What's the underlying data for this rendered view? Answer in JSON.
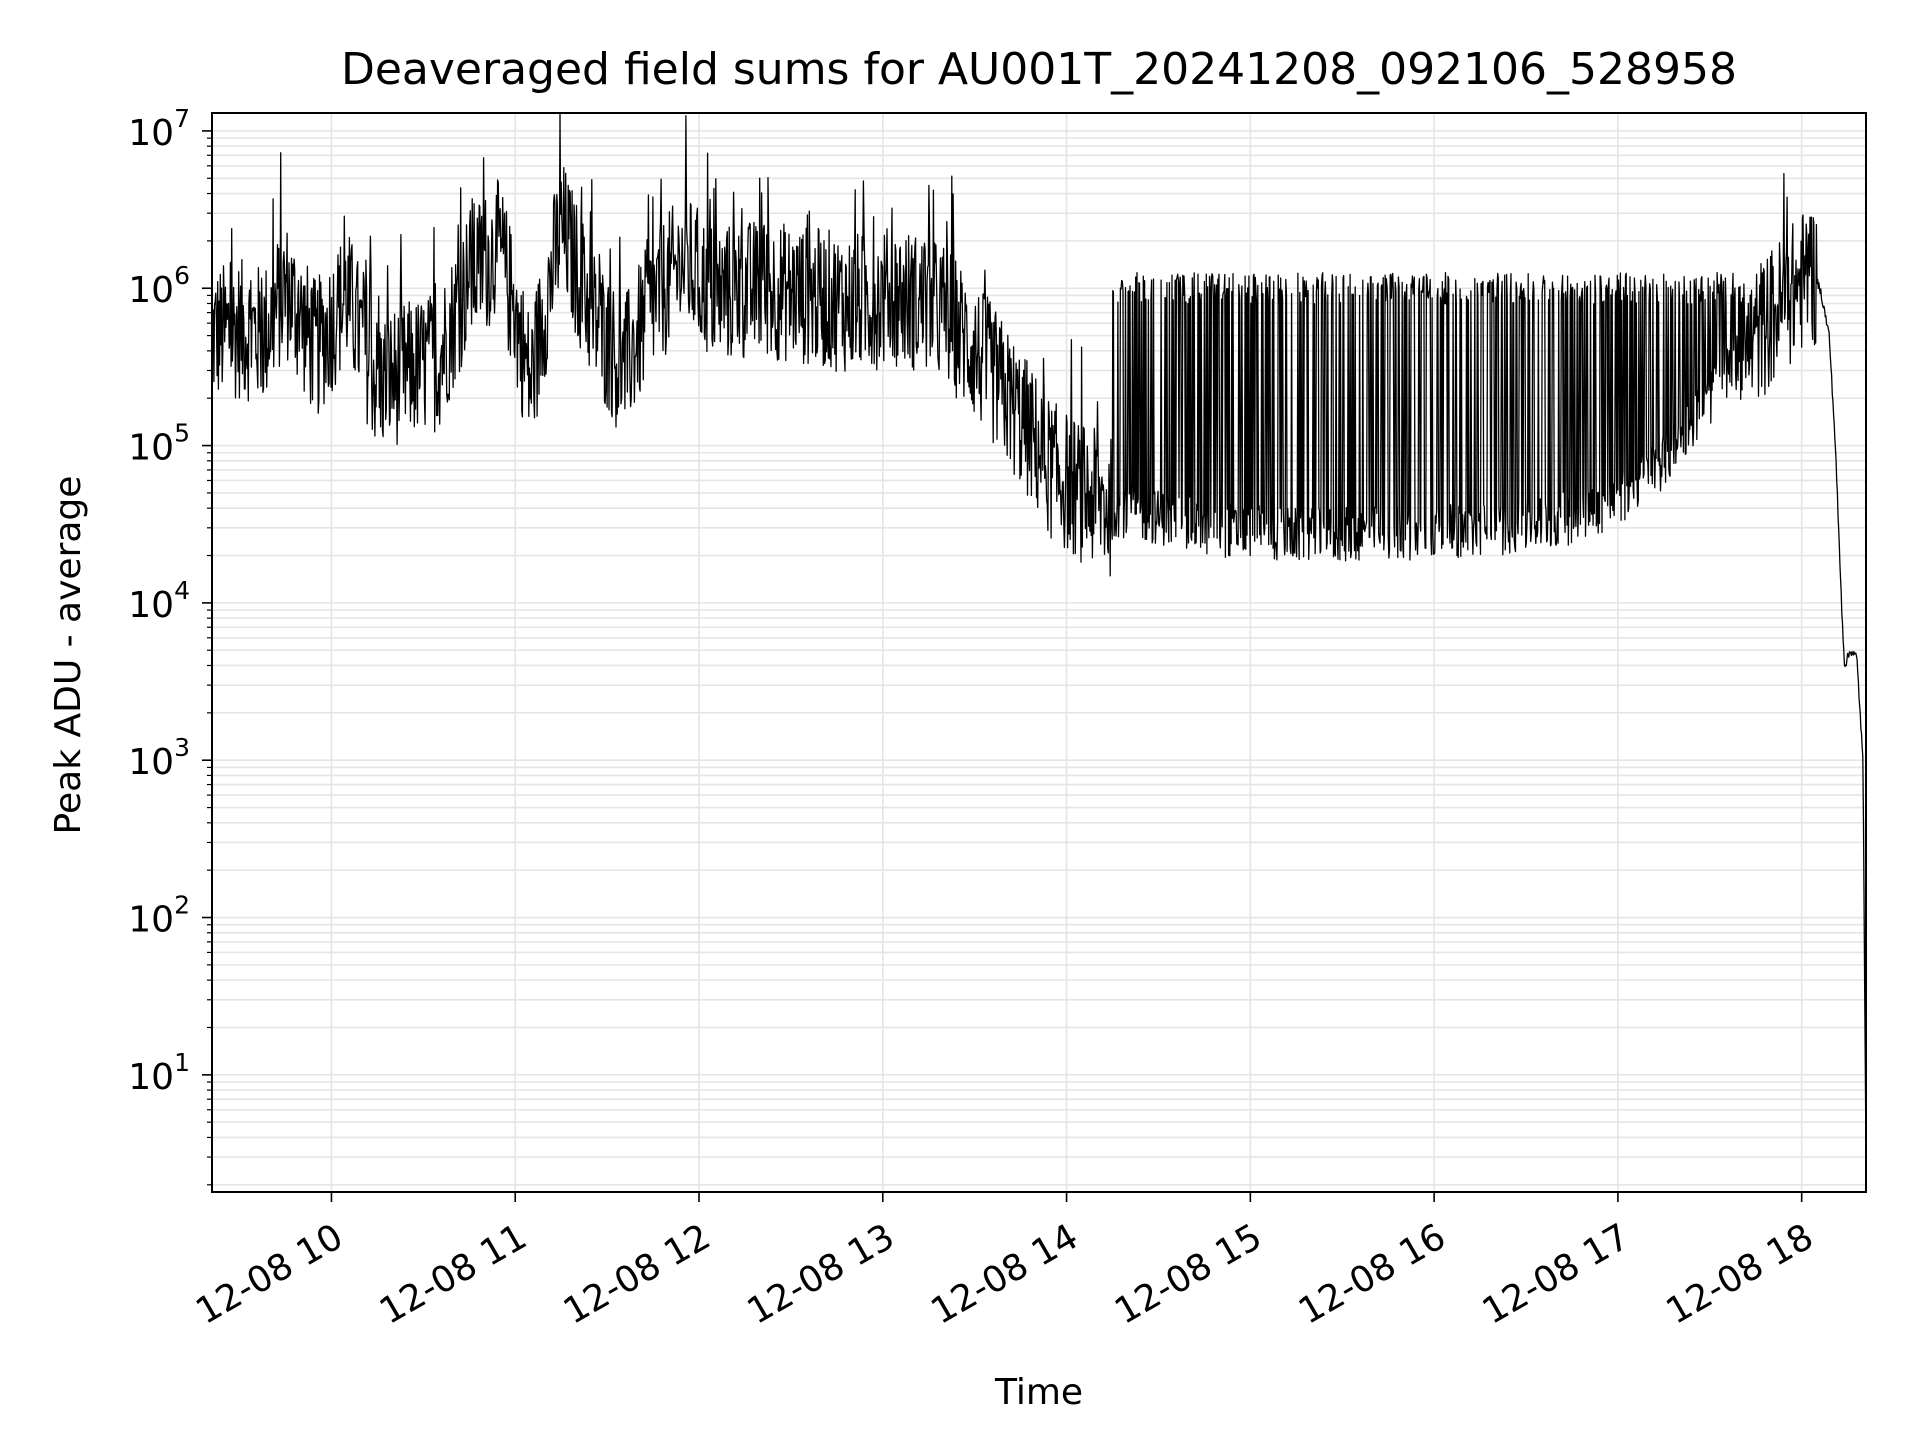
{
  "chart_data": {
    "type": "line",
    "title": "Deaveraged field sums for AU001T_20241208_092106_528958",
    "xlabel": "Time",
    "ylabel": "Peak ADU - average",
    "y_scale": "log",
    "ylim": [
      1.8,
      13000000
    ],
    "xlim": [
      "2024-12-08 09:21",
      "2024-12-08 18:21"
    ],
    "grid": "on (major and minor)",
    "line_color": "#000000",
    "grid_color": "#e5e5e5",
    "x_ticks": [
      {
        "t": "2024-12-08 10:00",
        "label": "12-08 10"
      },
      {
        "t": "2024-12-08 11:00",
        "label": "12-08 11"
      },
      {
        "t": "2024-12-08 12:00",
        "label": "12-08 12"
      },
      {
        "t": "2024-12-08 13:00",
        "label": "12-08 13"
      },
      {
        "t": "2024-12-08 14:00",
        "label": "12-08 14"
      },
      {
        "t": "2024-12-08 15:00",
        "label": "12-08 15"
      },
      {
        "t": "2024-12-08 16:00",
        "label": "12-08 16"
      },
      {
        "t": "2024-12-08 17:00",
        "label": "12-08 17"
      },
      {
        "t": "2024-12-08 18:00",
        "label": "12-08 18"
      }
    ],
    "y_ticks": [
      {
        "value": 10,
        "base": "10",
        "exp": "1"
      },
      {
        "value": 100,
        "base": "10",
        "exp": "2"
      },
      {
        "value": 1000,
        "base": "10",
        "exp": "3"
      },
      {
        "value": 10000,
        "base": "10",
        "exp": "4"
      },
      {
        "value": 100000,
        "base": "10",
        "exp": "5"
      },
      {
        "value": 1000000,
        "base": "10",
        "exp": "6"
      },
      {
        "value": 10000000,
        "base": "10",
        "exp": "7"
      }
    ],
    "series": [
      {
        "points": [
          [
            "2024-12-08 09:21",
            500000
          ],
          [
            "2024-12-08 09:30",
            550000
          ],
          [
            "2024-12-08 09:38",
            500000
          ],
          [
            "2024-12-08 09:45",
            1000000
          ],
          [
            "2024-12-08 09:55",
            400000
          ],
          [
            "2024-12-08 10:05",
            900000
          ],
          [
            "2024-12-08 10:15",
            250000
          ],
          [
            "2024-12-08 10:25",
            300000
          ],
          [
            "2024-12-08 10:35",
            350000
          ],
          [
            "2024-12-08 10:45",
            1200000
          ],
          [
            "2024-12-08 10:55",
            1800000
          ],
          [
            "2024-12-08 11:05",
            250000
          ],
          [
            "2024-12-08 11:15",
            2500000
          ],
          [
            "2024-12-08 11:25",
            700000
          ],
          [
            "2024-12-08 11:35",
            300000
          ],
          [
            "2024-12-08 11:45",
            800000
          ],
          [
            "2024-12-08 11:55",
            1500000
          ],
          [
            "2024-12-08 12:05",
            900000
          ],
          [
            "2024-12-08 12:20",
            1000000
          ],
          [
            "2024-12-08 12:35",
            900000
          ],
          [
            "2024-12-08 12:50",
            800000
          ],
          [
            "2024-12-08 13:05",
            900000
          ],
          [
            "2024-12-08 13:20",
            700000
          ],
          [
            "2024-12-08 13:35",
            300000
          ],
          [
            "2024-12-08 13:45",
            150000
          ],
          [
            "2024-12-08 13:55",
            70000
          ],
          [
            "2024-12-08 14:05",
            50000
          ],
          [
            "2024-12-08 14:15",
            40000
          ],
          [
            "2024-12-08 14:30",
            35000
          ],
          [
            "2024-12-08 14:45",
            30000
          ],
          [
            "2024-12-08 15:00",
            28000
          ],
          [
            "2024-12-08 15:15",
            27000
          ],
          [
            "2024-12-08 15:30",
            27000
          ],
          [
            "2024-12-08 15:45",
            28000
          ],
          [
            "2024-12-08 16:00",
            28000
          ],
          [
            "2024-12-08 16:15",
            29000
          ],
          [
            "2024-12-08 16:30",
            31000
          ],
          [
            "2024-12-08 16:45",
            35000
          ],
          [
            "2024-12-08 17:00",
            45000
          ],
          [
            "2024-12-08 17:15",
            80000
          ],
          [
            "2024-12-08 17:30",
            200000
          ],
          [
            "2024-12-08 17:45",
            500000
          ],
          [
            "2024-12-08 18:00",
            1100000
          ],
          [
            "2024-12-08 18:03",
            1300000
          ],
          [
            "2024-12-08 18:06",
            1000000
          ],
          [
            "2024-12-08 18:09",
            500000
          ],
          [
            "2024-12-08 18:11",
            100000
          ],
          [
            "2024-12-08 18:13",
            10000
          ],
          [
            "2024-12-08 18:14",
            4000
          ],
          [
            "2024-12-08 18:16",
            5000
          ],
          [
            "2024-12-08 18:18",
            4500
          ],
          [
            "2024-12-08 18:20",
            1000
          ],
          [
            "2024-12-08 18:21",
            3
          ]
        ]
      }
    ]
  }
}
